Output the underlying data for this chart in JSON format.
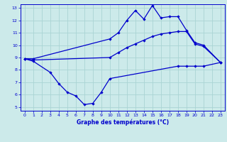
{
  "title": "Graphe des températures (°C)",
  "bg_color": "#cceaea",
  "grid_color": "#aad4d4",
  "line_color": "#0000cc",
  "xlim": [
    -0.5,
    23.5
  ],
  "ylim": [
    4.7,
    13.3
  ],
  "xticks": [
    0,
    1,
    2,
    3,
    4,
    5,
    6,
    7,
    8,
    9,
    10,
    11,
    12,
    13,
    14,
    15,
    16,
    17,
    18,
    19,
    20,
    21,
    22,
    23
  ],
  "yticks": [
    5,
    6,
    7,
    8,
    9,
    10,
    11,
    12,
    13
  ],
  "curve_max": [
    [
      0,
      8.9
    ],
    [
      1,
      8.9
    ],
    [
      10,
      10.5
    ],
    [
      11,
      11.0
    ],
    [
      12,
      12.0
    ],
    [
      13,
      12.8
    ],
    [
      14,
      12.1
    ],
    [
      15,
      13.2
    ],
    [
      16,
      12.2
    ],
    [
      17,
      12.3
    ],
    [
      18,
      12.3
    ],
    [
      19,
      11.2
    ],
    [
      20,
      10.2
    ],
    [
      21,
      10.0
    ],
    [
      23,
      8.6
    ]
  ],
  "curve_avg": [
    [
      0,
      8.9
    ],
    [
      1,
      8.8
    ],
    [
      10,
      9.0
    ],
    [
      11,
      9.4
    ],
    [
      12,
      9.8
    ],
    [
      13,
      10.1
    ],
    [
      14,
      10.4
    ],
    [
      15,
      10.7
    ],
    [
      16,
      10.9
    ],
    [
      17,
      11.0
    ],
    [
      18,
      11.1
    ],
    [
      19,
      11.1
    ],
    [
      20,
      10.1
    ],
    [
      21,
      9.9
    ],
    [
      23,
      8.6
    ]
  ],
  "curve_min": [
    [
      0,
      8.9
    ],
    [
      1,
      8.7
    ],
    [
      3,
      7.8
    ],
    [
      4,
      6.9
    ],
    [
      5,
      6.2
    ],
    [
      6,
      5.9
    ],
    [
      7,
      5.2
    ],
    [
      8,
      5.3
    ],
    [
      9,
      6.2
    ],
    [
      10,
      7.3
    ],
    [
      18,
      8.3
    ],
    [
      19,
      8.3
    ],
    [
      20,
      8.3
    ],
    [
      21,
      8.3
    ],
    [
      23,
      8.6
    ]
  ]
}
